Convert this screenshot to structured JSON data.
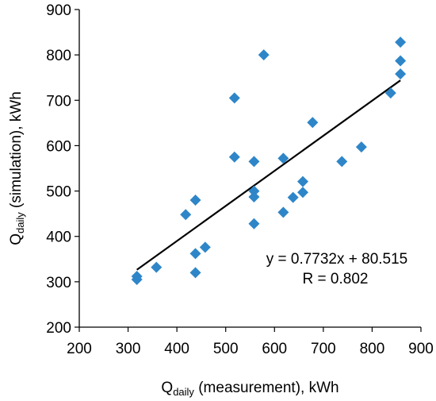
{
  "chart_data": {
    "type": "scatter",
    "x_axis": {
      "label_main": "Q",
      "label_sub": "daily",
      "label_rest": " (measurement), kWh",
      "min": 200,
      "max": 900,
      "ticks": [
        200,
        300,
        400,
        500,
        600,
        700,
        800,
        900
      ]
    },
    "y_axis": {
      "label_main": "Q",
      "label_sub": "daily",
      "label_rest": " (simulation), kWh",
      "min": 200,
      "max": 900,
      "ticks": [
        200,
        300,
        400,
        500,
        600,
        700,
        800,
        900
      ]
    },
    "grid": false,
    "marker": "diamond",
    "marker_color": "#2E86C8",
    "trendline_color": "#000000",
    "points": [
      [
        318,
        312
      ],
      [
        318,
        305
      ],
      [
        358,
        332
      ],
      [
        418,
        448
      ],
      [
        438,
        480
      ],
      [
        438,
        362
      ],
      [
        438,
        320
      ],
      [
        458,
        376
      ],
      [
        518,
        705
      ],
      [
        518,
        575
      ],
      [
        558,
        565
      ],
      [
        558,
        500
      ],
      [
        558,
        487
      ],
      [
        558,
        428
      ],
      [
        578,
        800
      ],
      [
        618,
        572
      ],
      [
        618,
        453
      ],
      [
        638,
        486
      ],
      [
        658,
        521
      ],
      [
        658,
        497
      ],
      [
        678,
        651
      ],
      [
        738,
        565
      ],
      [
        778,
        597
      ],
      [
        838,
        716
      ],
      [
        858,
        828
      ],
      [
        858,
        787
      ],
      [
        858,
        758
      ]
    ],
    "trendline": {
      "slope": 0.7732,
      "intercept": 80.515,
      "x_start": 318,
      "x_end": 858
    },
    "annotations": {
      "equation": "y = 0.7732x + 80.515",
      "r_value": "R = 0.802"
    }
  }
}
